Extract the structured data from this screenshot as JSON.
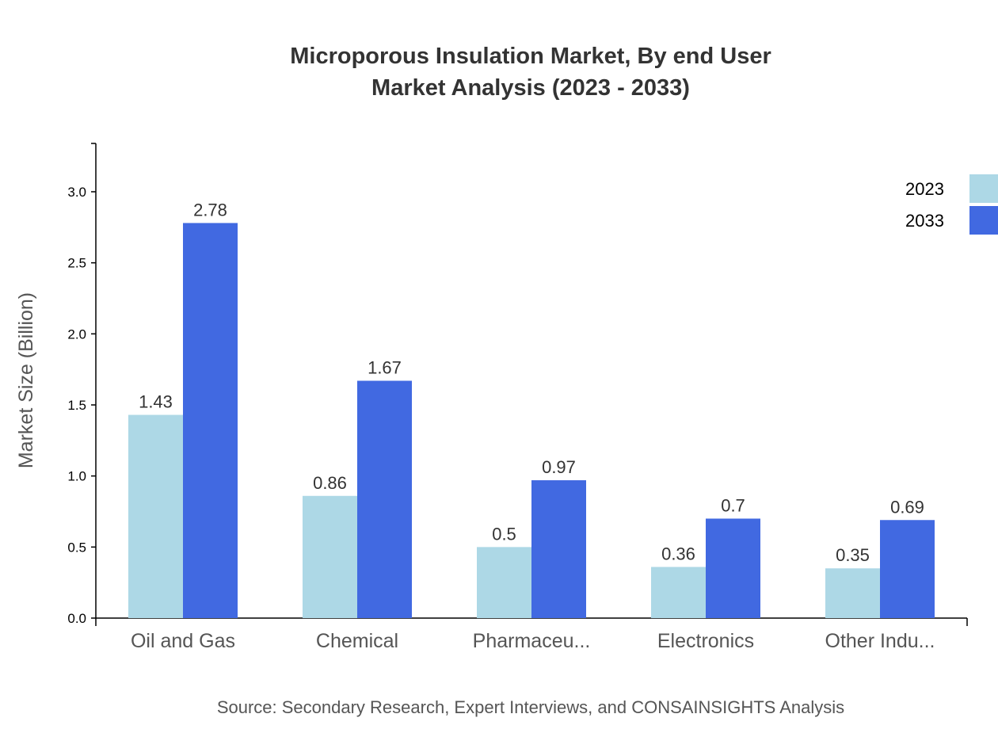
{
  "chart_data": {
    "type": "bar",
    "title": "Microporous Insulation Market, By end User",
    "subtitle": "Market Analysis (2023 - 2033)",
    "xlabel": "",
    "ylabel": "Market Size (Billion)",
    "ylim": [
      0,
      3.34
    ],
    "yticks": [
      "0.0",
      "0.5",
      "1.0",
      "1.5",
      "2.0",
      "2.5",
      "3.0"
    ],
    "grid": false,
    "legend_position": "top-right",
    "categories": [
      "Oil and Gas",
      "Chemical",
      "Pharmaceu...",
      "Electronics",
      "Other Indu..."
    ],
    "series": [
      {
        "name": "2023",
        "color": "#ADD8E6",
        "values": [
          1.43,
          0.86,
          0.5,
          0.36,
          0.35
        ]
      },
      {
        "name": "2033",
        "color": "#4169E1",
        "values": [
          2.78,
          1.67,
          0.97,
          0.7,
          0.69
        ]
      }
    ],
    "source": "Source: Secondary Research, Expert Interviews, and CONSAINSIGHTS Analysis"
  }
}
